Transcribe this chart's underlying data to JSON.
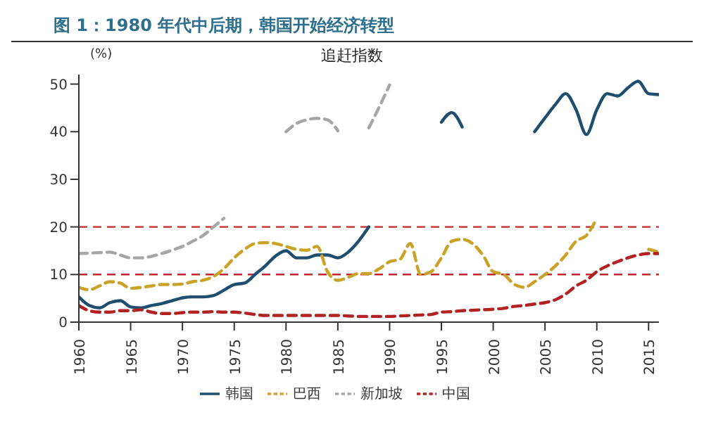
{
  "chart_data": {
    "type": "line",
    "title": "图 1：1980 年代中后期，韩国开始经济转型",
    "subtitle": "追赶指数",
    "ylabel": "(%)",
    "x": [
      1960,
      1961,
      1962,
      1963,
      1964,
      1965,
      1966,
      1967,
      1968,
      1969,
      1970,
      1971,
      1972,
      1973,
      1974,
      1975,
      1976,
      1977,
      1978,
      1979,
      1980,
      1981,
      1982,
      1983,
      1984,
      1985,
      1986,
      1987,
      1988,
      1989,
      1990,
      1991,
      1992,
      1993,
      1994,
      1995,
      1996,
      1997,
      1998,
      1999,
      2000,
      2001,
      2002,
      2003,
      2004,
      2005,
      2006,
      2007,
      2008,
      2009,
      2010,
      2011,
      2012,
      2013,
      2014,
      2015,
      2016
    ],
    "series": [
      {
        "name": "韩国",
        "color": "#1f4e6e",
        "line_style": "solid",
        "values": [
          5.3,
          3.5,
          3,
          4.1,
          4.5,
          3.2,
          3,
          3.5,
          3.9,
          4.5,
          5.1,
          5.3,
          5.3,
          5.6,
          6.7,
          7.9,
          8.2,
          10,
          11.8,
          13.9,
          15,
          13.5,
          13.5,
          14.1,
          14.1,
          13.5,
          14.7,
          17,
          20,
          null,
          null,
          null,
          null,
          null,
          null,
          42,
          44,
          41,
          null,
          null,
          null,
          null,
          null,
          null,
          40,
          42.9,
          45.7,
          48,
          44.6,
          39.4,
          44.6,
          48,
          47.5,
          49.2,
          50.6,
          48,
          47.8
        ]
      },
      {
        "name": "巴西",
        "color": "#c9a227",
        "line_style": "dashed",
        "values": [
          7.3,
          6.8,
          7.6,
          8.5,
          8.2,
          7.1,
          7.3,
          7.6,
          7.9,
          7.9,
          8,
          8.5,
          8.8,
          9.6,
          11.2,
          13.5,
          15.3,
          16.5,
          16.7,
          16.5,
          15.9,
          15.3,
          15.1,
          15.9,
          10.6,
          8.8,
          9.4,
          10.2,
          10.2,
          11.2,
          12.7,
          13.2,
          16.5,
          10,
          10.6,
          13.5,
          17,
          17.4,
          16.5,
          14.1,
          10.6,
          10,
          8,
          7.3,
          8.5,
          10,
          11.8,
          14.1,
          17,
          18.2,
          21.8,
          null,
          null,
          null,
          null,
          15.3,
          14.7
        ]
      },
      {
        "name": "新加坡",
        "color": "#a6a6a6",
        "line_style": "dashed",
        "values": [
          14.4,
          14.5,
          14.6,
          14.7,
          14.1,
          13.5,
          13.5,
          13.8,
          14.4,
          15.1,
          15.9,
          17,
          18.2,
          20,
          21.8,
          null,
          null,
          null,
          null,
          null,
          40,
          41.7,
          42.5,
          42.8,
          42.5,
          40.2,
          null,
          null,
          40.8,
          45.2,
          49.8,
          null,
          null,
          null,
          null,
          null,
          null,
          null,
          null,
          null,
          null,
          null,
          null,
          null,
          null,
          null,
          null,
          null,
          null,
          null,
          null,
          null,
          null,
          null,
          null,
          null,
          null
        ]
      },
      {
        "name": "中国",
        "color": "#b22222",
        "line_style": "dashed",
        "values": [
          3.5,
          2.4,
          2.1,
          2.1,
          2.4,
          2.4,
          2.6,
          2.1,
          1.8,
          1.8,
          2,
          2.1,
          2.1,
          2.2,
          2.1,
          2.1,
          1.9,
          1.6,
          1.4,
          1.4,
          1.4,
          1.4,
          1.4,
          1.4,
          1.4,
          1.4,
          1.3,
          1.2,
          1.2,
          1.2,
          1.2,
          1.3,
          1.4,
          1.5,
          1.6,
          2.1,
          2.2,
          2.4,
          2.5,
          2.6,
          2.7,
          2.9,
          3.3,
          3.5,
          3.8,
          4.1,
          4.7,
          5.9,
          7.6,
          8.8,
          10.6,
          11.8,
          12.7,
          13.5,
          14.1,
          14.4,
          14.4
        ]
      }
    ],
    "xlim": [
      1960,
      2016
    ],
    "xticks": [
      1960,
      1965,
      1970,
      1975,
      1980,
      1985,
      1990,
      1995,
      2000,
      2005,
      2010,
      2015
    ],
    "ylim": [
      0,
      52
    ],
    "yticks": [
      0,
      10,
      20,
      30,
      40,
      50
    ],
    "ref_lines": [
      {
        "axis": "y",
        "value": 10,
        "color": "#c0282d",
        "line_style": "dashed"
      },
      {
        "axis": "y",
        "value": 20,
        "color": "#c0282d",
        "line_style": "dashed"
      }
    ],
    "grid": false,
    "legend": "bottom",
    "marker": "none"
  }
}
